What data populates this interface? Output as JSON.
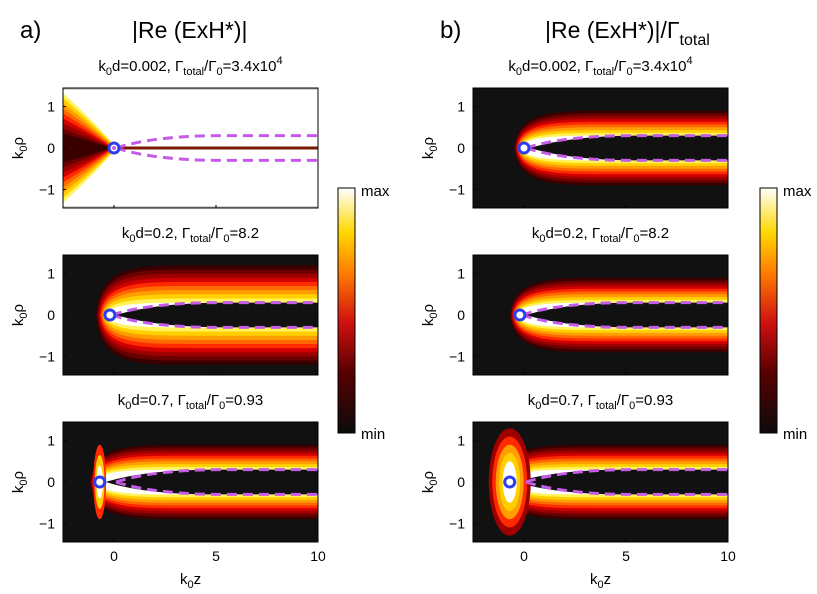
{
  "figure": {
    "panel_a": {
      "letter": "a)",
      "header": "|Re (ExH*)|",
      "subplot_titles": [
        {
          "base": "k",
          "sub1": "0",
          "mid": "d=0.002, Γ",
          "sub2": "total",
          "mid2": "/Γ",
          "sub3": "0",
          "tail": "=3.4x10",
          "sup": "4"
        },
        {
          "base": "k",
          "sub1": "0",
          "mid": "d=0.2, Γ",
          "sub2": "total",
          "mid2": "/Γ",
          "sub3": "0",
          "tail": "=8.2",
          "sup": ""
        },
        {
          "base": "k",
          "sub1": "0",
          "mid": "d=0.7, Γ",
          "sub2": "total",
          "mid2": "/Γ",
          "sub3": "0",
          "tail": "=0.93",
          "sup": ""
        }
      ]
    },
    "panel_b": {
      "letter": "b)",
      "header_main": "|Re (ExH*)|/Γ",
      "header_sub": "total",
      "subplot_titles": [
        {
          "base": "k",
          "sub1": "0",
          "mid": "d=0.002, Γ",
          "sub2": "total",
          "mid2": "/Γ",
          "sub3": "0",
          "tail": "=3.4x10",
          "sup": "4"
        },
        {
          "base": "k",
          "sub1": "0",
          "mid": "d=0.2, Γ",
          "sub2": "total",
          "mid2": "/Γ",
          "sub3": "0",
          "tail": "=8.2",
          "sup": ""
        },
        {
          "base": "k",
          "sub1": "0",
          "mid": "d=0.7, Γ",
          "sub2": "total",
          "mid2": "/Γ",
          "sub3": "0",
          "tail": "=0.93",
          "sup": ""
        }
      ]
    },
    "ylabel": {
      "base": "k",
      "sub": "0",
      "tail": "ρ"
    },
    "xlabel": {
      "base": "k",
      "sub": "0",
      "tail": "z"
    },
    "colorbar": {
      "max_label": "max",
      "min_label": "min"
    }
  },
  "chart_data": {
    "type": "heatmap",
    "colormap": "hot",
    "colors": {
      "dashed_curve": "#c45ce8",
      "source_marker": "#2b3ff0",
      "background": "#111111"
    },
    "x_ticks": [
      0,
      5,
      10
    ],
    "y_ticks": [
      -1,
      0,
      1
    ],
    "xlim": [
      -2.5,
      10
    ],
    "ylim": [
      -1.45,
      1.45
    ],
    "xlabel": "k0z",
    "ylabel": "k0ρ",
    "subplots": [
      {
        "panel": "a",
        "k0d": 0.002,
        "gamma_ratio": "3.4x10^4",
        "source_z": 0,
        "field": "left-lobe"
      },
      {
        "panel": "a",
        "k0d": 0.2,
        "gamma_ratio": "8.2",
        "source_z": -0.2,
        "field": "wide-beam"
      },
      {
        "panel": "a",
        "k0d": 0.7,
        "gamma_ratio": "0.93",
        "source_z": -0.7,
        "field": "thin-beam"
      },
      {
        "panel": "b",
        "k0d": 0.002,
        "gamma_ratio": "3.4x10^4",
        "source_z": 0,
        "field": "thin-beam"
      },
      {
        "panel": "b",
        "k0d": 0.2,
        "gamma_ratio": "8.2",
        "source_z": -0.2,
        "field": "thin-beam"
      },
      {
        "panel": "b",
        "k0d": 0.7,
        "gamma_ratio": "0.93",
        "source_z": -0.7,
        "field": "thin-beam-lobe"
      }
    ]
  }
}
